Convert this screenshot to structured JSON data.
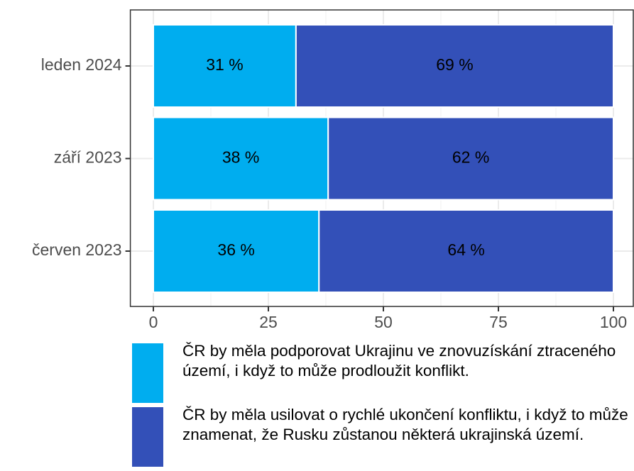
{
  "chart_data": {
    "type": "stacked_barh",
    "categories": [
      "leden 2024",
      "září 2023",
      "červen 2023"
    ],
    "series": [
      {
        "name": "ČR by měla podporovat Ukrajinu ve znovuzískání ztraceného území, i když to může prodloužit konflikt.",
        "color": "#00adef",
        "values": [
          31,
          38,
          36
        ],
        "value_labels": [
          "31 %",
          "38 %",
          "36 %"
        ]
      },
      {
        "name": "ČR by měla usilovat o rychlé ukončení konfliktu, i když to může znamenat, že Rusku zůstanou některá ukrajinská území.",
        "color": "#3350b8",
        "values": [
          69,
          62,
          64
        ],
        "value_labels": [
          "69 %",
          "62 %",
          "64 %"
        ]
      }
    ],
    "xlim": [
      -5,
      105
    ],
    "xticks": [
      0,
      25,
      50,
      75,
      100
    ],
    "grid": true,
    "legend": "bottom"
  }
}
